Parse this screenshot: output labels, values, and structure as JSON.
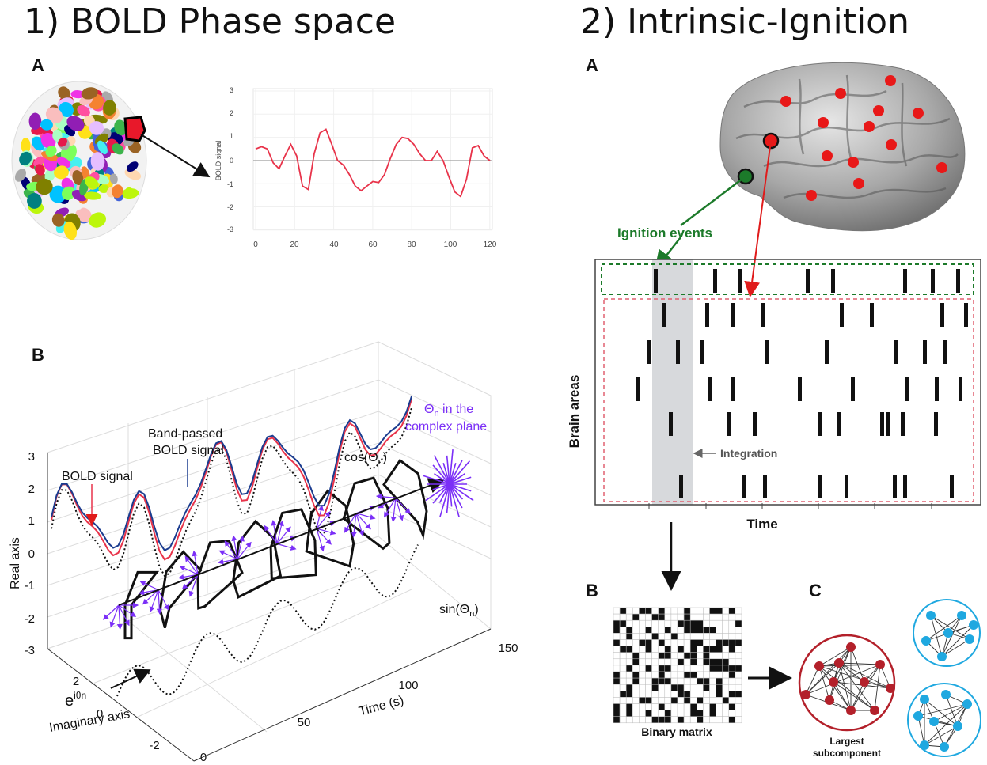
{
  "panel1": {
    "title": "1) BOLD Phase space",
    "label_a": "A",
    "label_b": "B",
    "mini_chart": {
      "ylabel": "BOLD signal",
      "yticks": [
        "3",
        "2",
        "1",
        "0",
        "-1",
        "-2",
        "-3"
      ],
      "xticks": [
        "0",
        "20",
        "40",
        "60",
        "80",
        "100",
        "120"
      ]
    },
    "plot3d": {
      "z_ticks": [
        "3",
        "2",
        "1",
        "0",
        "-1",
        "-2",
        "-3"
      ],
      "zlabel": "Real axis",
      "y_ticks": [
        "2",
        "0",
        "-2"
      ],
      "ylabel": "Imaginary axis",
      "x_ticks": [
        "0",
        "50",
        "100",
        "150"
      ],
      "xlabel": "Time (s)",
      "ann_bold": "BOLD signal",
      "ann_band_1": "Band-passed",
      "ann_band_2": "BOLD signal",
      "ann_cos": "cos(Θ",
      "ann_sin": "sin(Θ",
      "ann_sub": "n",
      "ann_close": ")",
      "ann_exp_base": "e",
      "ann_exp_sup": "iθn",
      "ann_theta_1_sym": "Θ",
      "ann_theta_1_sub": "n",
      "ann_theta_1_rest": " in the",
      "ann_theta_2": "complex plane"
    }
  },
  "panel2": {
    "title": "2) Intrinsic-Ignition",
    "label_a": "A",
    "label_b": "B",
    "label_c": "C",
    "ignition_events": "Ignition events",
    "integration": "Integration",
    "brain_areas": "Brain areas",
    "time": "Time",
    "binary_matrix": "Binary matrix",
    "largest_1": "Largest",
    "largest_2": "subcomponent"
  },
  "colors": {
    "red_signal": "#e8334a",
    "blue_signal": "#1b3c8f",
    "purple": "#7b2ff7",
    "ignition_green": "#1c7a2a",
    "red_dot": "#e81818",
    "node_red": "#b3202a",
    "node_blue": "#1fa8e0"
  }
}
